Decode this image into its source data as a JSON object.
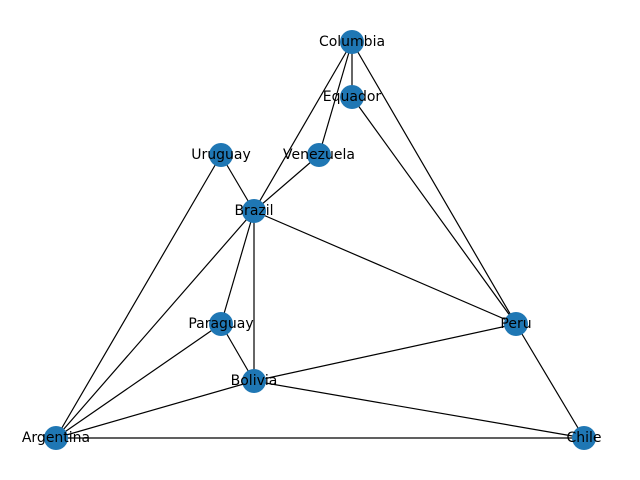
{
  "graph": {
    "node_color": "#1f77b4",
    "edge_color": "#000000",
    "nodes": [
      {
        "id": "columbia",
        "label": "Columbia"
      },
      {
        "id": "equador",
        "label": "Equador"
      },
      {
        "id": "uruguay",
        "label": "Uruguay"
      },
      {
        "id": "venezuela",
        "label": "Venezuela"
      },
      {
        "id": "brazil",
        "label": "Brazil"
      },
      {
        "id": "paraguay",
        "label": "Paraguay"
      },
      {
        "id": "peru",
        "label": "Peru"
      },
      {
        "id": "bolivia",
        "label": "Bolivia"
      },
      {
        "id": "argentina",
        "label": "Argentina"
      },
      {
        "id": "chile",
        "label": "Chile"
      }
    ],
    "edges": [
      [
        "columbia",
        "equador"
      ],
      [
        "columbia",
        "venezuela"
      ],
      [
        "columbia",
        "brazil"
      ],
      [
        "columbia",
        "peru"
      ],
      [
        "equador",
        "peru"
      ],
      [
        "venezuela",
        "brazil"
      ],
      [
        "uruguay",
        "brazil"
      ],
      [
        "uruguay",
        "argentina"
      ],
      [
        "brazil",
        "paraguay"
      ],
      [
        "brazil",
        "bolivia"
      ],
      [
        "brazil",
        "peru"
      ],
      [
        "brazil",
        "argentina"
      ],
      [
        "paraguay",
        "bolivia"
      ],
      [
        "paraguay",
        "argentina"
      ],
      [
        "bolivia",
        "peru"
      ],
      [
        "bolivia",
        "argentina"
      ],
      [
        "bolivia",
        "chile"
      ],
      [
        "peru",
        "chile"
      ],
      [
        "argentina",
        "chile"
      ]
    ]
  }
}
